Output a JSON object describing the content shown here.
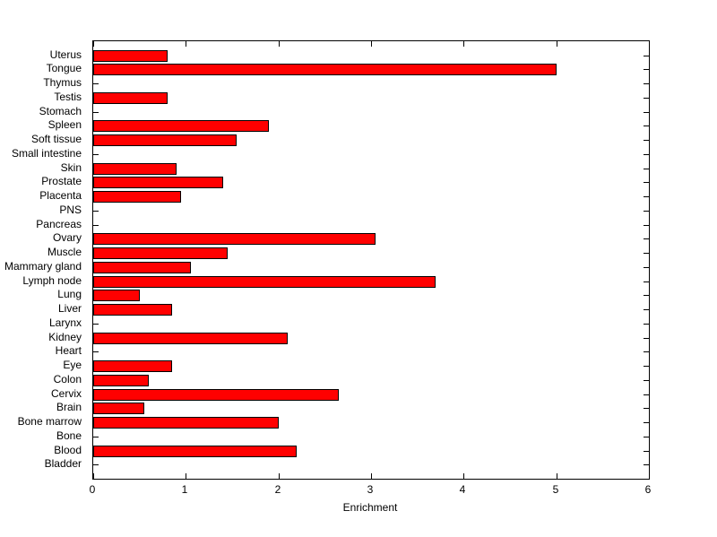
{
  "chart_data": {
    "type": "bar",
    "orientation": "horizontal",
    "title": "",
    "xlabel": "Enrichment",
    "ylabel": "",
    "categories": [
      "Uterus",
      "Tongue",
      "Thymus",
      "Testis",
      "Stomach",
      "Spleen",
      "Soft tissue",
      "Small intestine",
      "Skin",
      "Prostate",
      "Placenta",
      "PNS",
      "Pancreas",
      "Ovary",
      "Muscle",
      "Mammary gland",
      "Lymph node",
      "Lung",
      "Liver",
      "Larynx",
      "Kidney",
      "Heart",
      "Eye",
      "Colon",
      "Cervix",
      "Brain",
      "Bone marrow",
      "Bone",
      "Blood",
      "Bladder"
    ],
    "values": [
      0.8,
      5.0,
      0,
      0.8,
      0,
      1.9,
      1.55,
      0,
      0.9,
      1.4,
      0.95,
      0,
      0,
      3.05,
      1.45,
      1.05,
      3.7,
      0.5,
      0.85,
      0,
      2.1,
      0,
      0.85,
      0.6,
      2.65,
      0.55,
      2.0,
      0,
      2.2,
      0
    ],
    "xlim": [
      0,
      6
    ],
    "xticks": [
      0,
      1,
      2,
      3,
      4,
      5,
      6
    ],
    "grid": false,
    "legend": null,
    "bar_color": "#FF0000",
    "bar_edge_color": "#000000",
    "background_color": "#FFFFFF",
    "axis_color": "#000000"
  }
}
